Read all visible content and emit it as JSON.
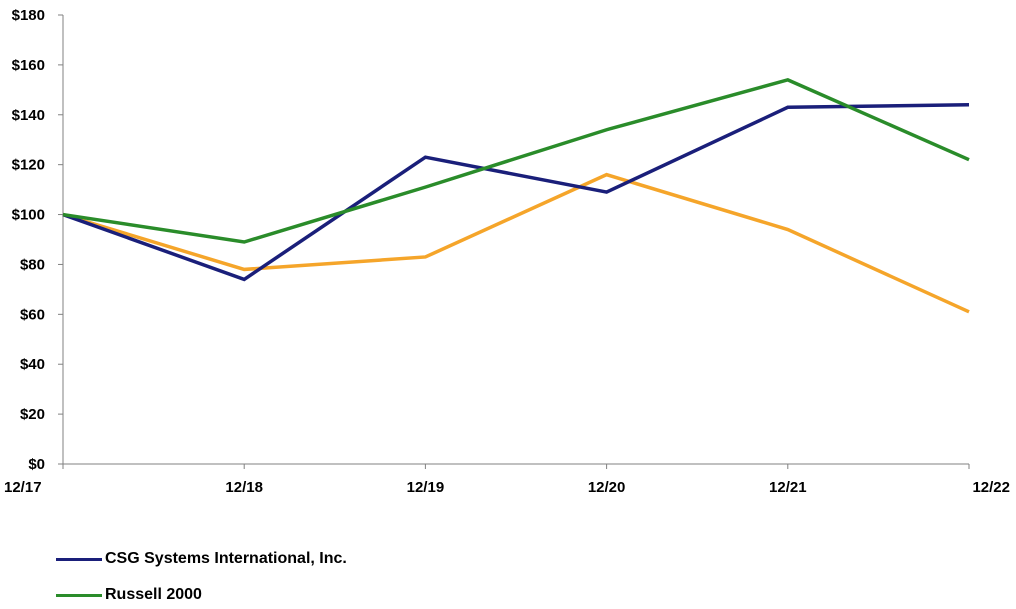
{
  "chart_data": {
    "type": "line",
    "categories": [
      "12/17",
      "12/18",
      "12/19",
      "12/20",
      "12/21",
      "12/22"
    ],
    "y_tick_labels": [
      "$0",
      "$20",
      "$40",
      "$60",
      "$80",
      "$100",
      "$120",
      "$140",
      "$160",
      "$180"
    ],
    "ylim": [
      0,
      180
    ],
    "ytick_step": 20,
    "grid": false,
    "legend_position": "bottom-left",
    "series": [
      {
        "name": "CSG Systems International, Inc.",
        "color": "#1a1f7a",
        "values": [
          100,
          74,
          123,
          109,
          143,
          144
        ]
      },
      {
        "name": "Russell 2000",
        "color": "#2a8c2a",
        "values": [
          100,
          89,
          111,
          134,
          154,
          122
        ]
      },
      {
        "name": "",
        "color": "#f5a52a",
        "values": [
          100,
          78,
          83,
          116,
          94,
          61
        ]
      }
    ]
  }
}
